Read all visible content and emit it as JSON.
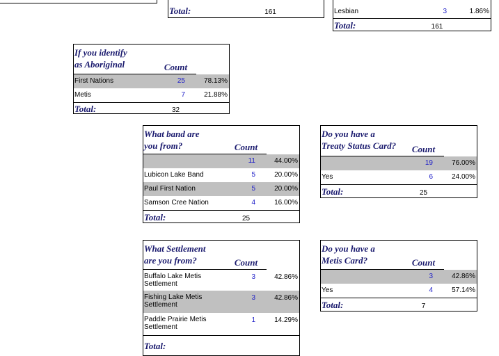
{
  "tables": [
    {
      "total_label": "Total:",
      "total": "161"
    },
    {
      "rows": [
        {
          "label": "Lesbian",
          "count": "3",
          "percent": "1.86%"
        }
      ],
      "total_label": "Total:",
      "total": "161"
    },
    {
      "title": [
        "If you identify",
        "as Aboriginal"
      ],
      "count_header": "Count",
      "rows": [
        {
          "label": "First Nations",
          "count": "25",
          "percent": "78.13%"
        },
        {
          "label": "Metis",
          "count": "7",
          "percent": "21.88%"
        }
      ],
      "total_label": "Total:",
      "total": "32"
    },
    {
      "title": [
        "What band are",
        "you from?"
      ],
      "count_header": "Count",
      "rows": [
        {
          "label": null,
          "count": "11",
          "percent": "44.00%"
        },
        {
          "label": "Lubicon Lake Band",
          "count": "5",
          "percent": "20.00%"
        },
        {
          "label": "Paul First Nation",
          "count": "5",
          "percent": "20.00%"
        },
        {
          "label": "Samson Cree Nation",
          "count": "4",
          "percent": "16.00%"
        }
      ],
      "total_label": "Total:",
      "total": "25"
    },
    {
      "title": [
        "Do you have a",
        "Treaty Status Card?"
      ],
      "count_header": "Count",
      "rows": [
        {
          "label": null,
          "count": "19",
          "percent": "76.00%"
        },
        {
          "label": "Yes",
          "count": "6",
          "percent": "24.00%"
        }
      ],
      "total_label": "Total:",
      "total": "25"
    },
    {
      "title": [
        "What Settlement",
        "are you from?"
      ],
      "count_header": "Count",
      "rows": [
        {
          "label": "Buffalo Lake Metis Settlement",
          "count": "3",
          "percent": "42.86%"
        },
        {
          "label": "Fishing Lake Metis Settlement",
          "count": "3",
          "percent": "42.86%"
        },
        {
          "label": "Paddle Prairie Metis Settlement",
          "count": "1",
          "percent": "14.29%"
        }
      ],
      "total_label": "Total:"
    },
    {
      "title": [
        "Do you have a",
        "Metis Card?"
      ],
      "count_header": "Count",
      "rows": [
        {
          "label": null,
          "count": "3",
          "percent": "42.86%"
        },
        {
          "label": "Yes",
          "count": "4",
          "percent": "57.14%"
        }
      ],
      "total_label": "Total:",
      "total": "7"
    }
  ]
}
